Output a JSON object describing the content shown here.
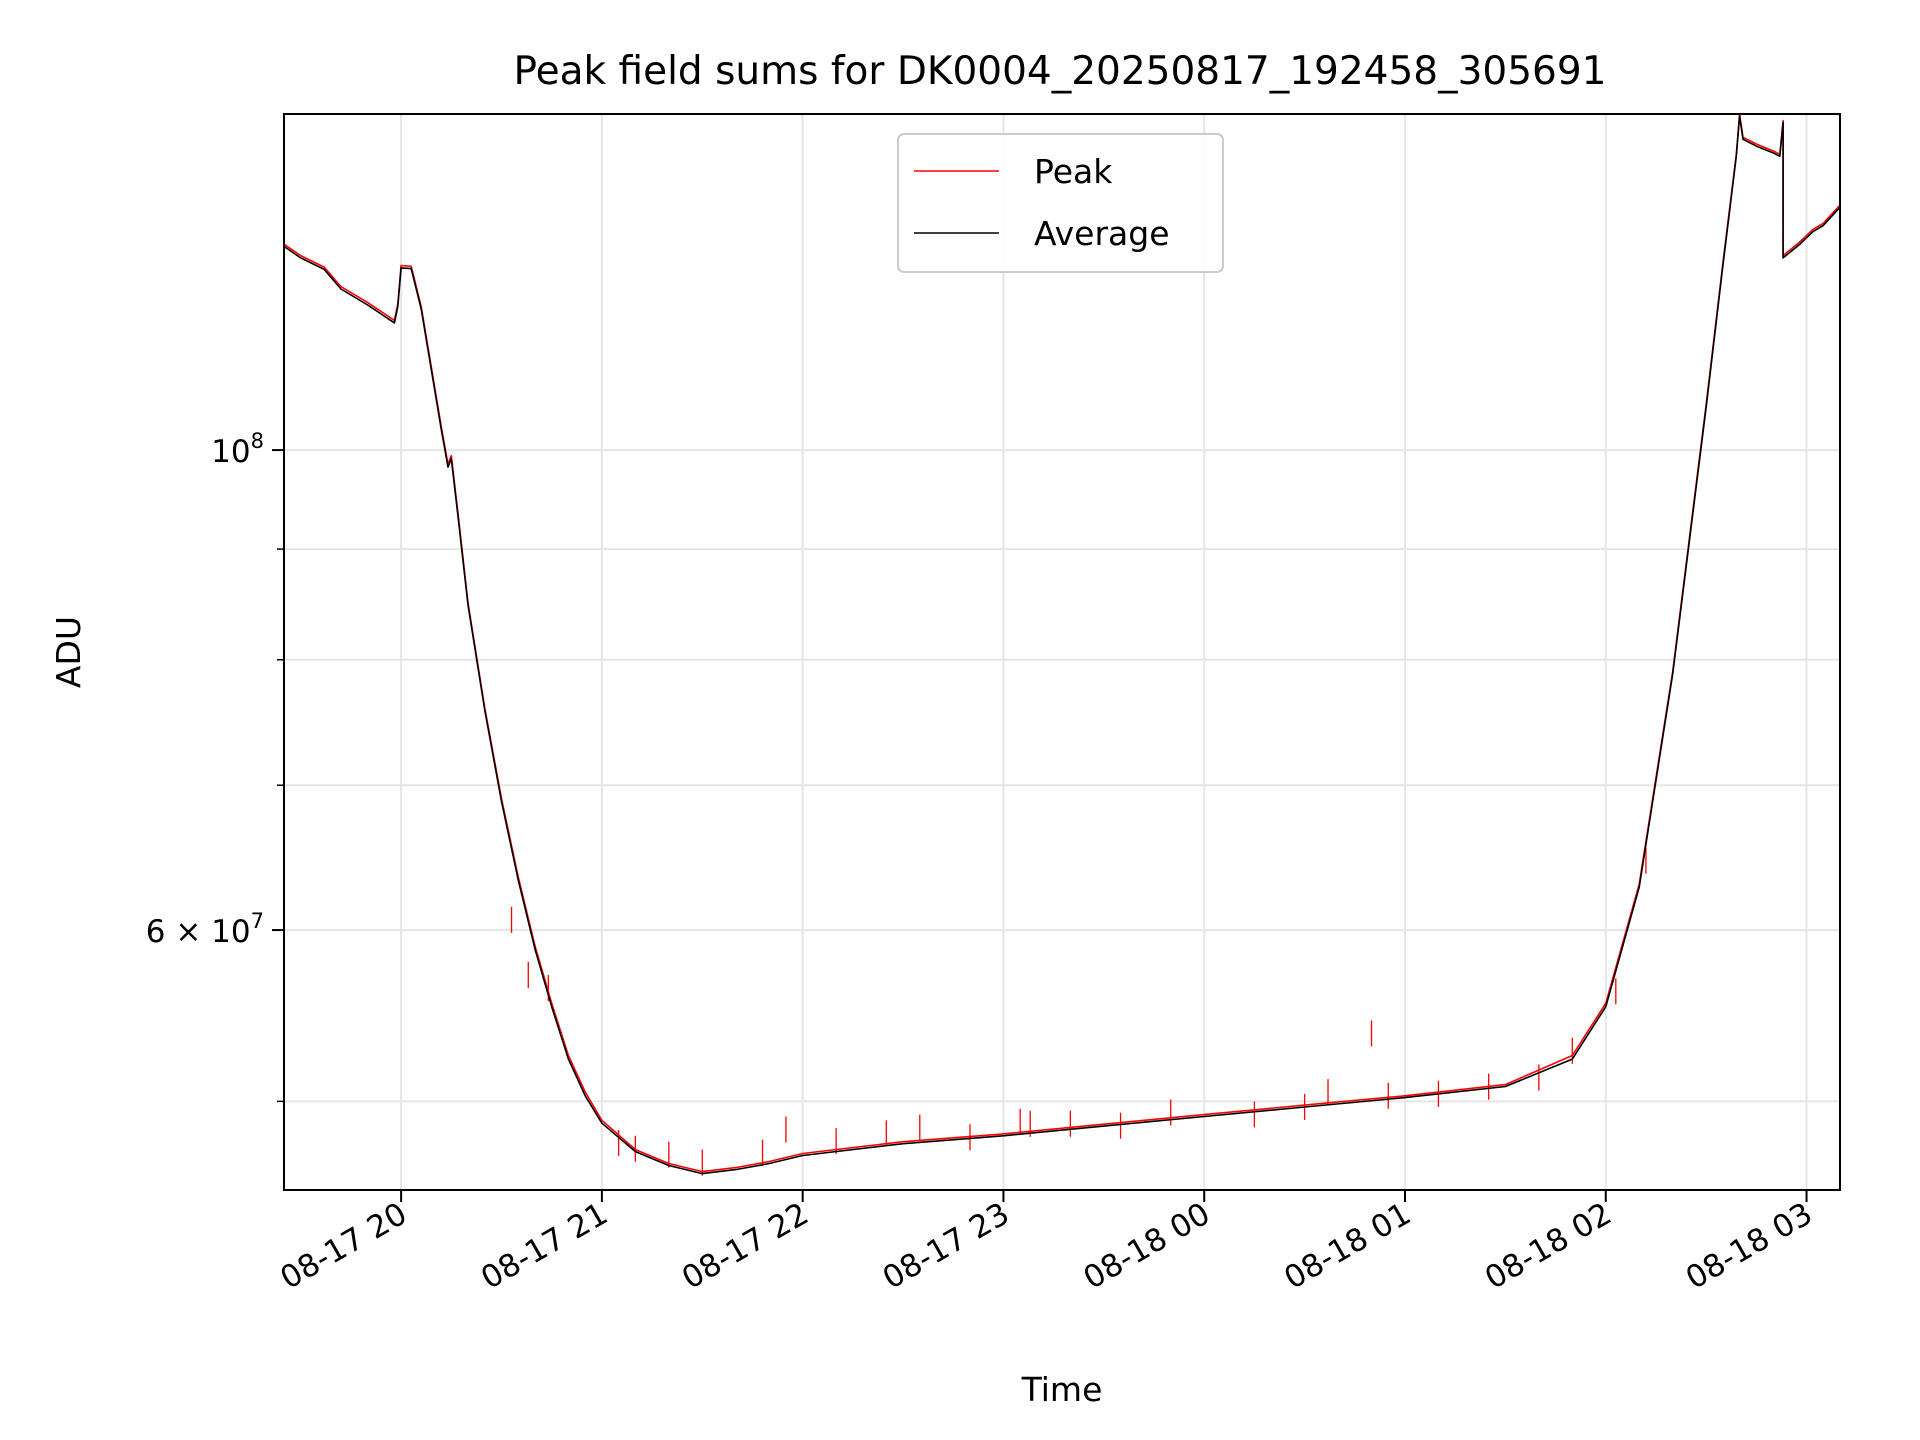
{
  "chart_data": {
    "type": "line",
    "title": "Peak field sums for DK0004_20250817_192458_305691",
    "xlabel": "Time",
    "ylabel": "ADU",
    "yscale": "log",
    "grid": true,
    "legend_position": "top-center",
    "xlim": [
      "2025-08-17 19:25",
      "2025-08-18 03:10"
    ],
    "ylim": [
      45500000,
      143000000
    ],
    "x_ticks": [
      {
        "label": "08-17 20",
        "value": "2025-08-17 20:00"
      },
      {
        "label": "08-17 21",
        "value": "2025-08-17 21:00"
      },
      {
        "label": "08-17 22",
        "value": "2025-08-17 22:00"
      },
      {
        "label": "08-17 23",
        "value": "2025-08-17 23:00"
      },
      {
        "label": "08-18 00",
        "value": "2025-08-18 00:00"
      },
      {
        "label": "08-18 01",
        "value": "2025-08-18 01:00"
      },
      {
        "label": "08-18 02",
        "value": "2025-08-18 02:00"
      },
      {
        "label": "08-18 03",
        "value": "2025-08-18 03:00"
      }
    ],
    "y_major_ticks": [
      {
        "value": 100000000,
        "base": "10",
        "exp": "8",
        "mult": ""
      },
      {
        "value": 60000000,
        "base": "10",
        "exp": "7",
        "mult": "6 × "
      }
    ],
    "y_minor_ticks": [
      50000000,
      70000000,
      80000000,
      90000000
    ],
    "series": [
      {
        "name": "Peak",
        "color": "#ff0000",
        "points": [
          [
            "2025-08-17 19:25",
            124500000
          ],
          [
            "2025-08-17 19:30",
            123000000
          ],
          [
            "2025-08-17 19:37",
            121500000
          ],
          [
            "2025-08-17 19:42",
            119000000
          ],
          [
            "2025-08-17 19:50",
            117000000
          ],
          [
            "2025-08-17 19:58",
            114800000
          ],
          [
            "2025-08-17 19:59",
            116800000
          ],
          [
            "2025-08-17 20:00",
            121700000
          ],
          [
            "2025-08-17 20:03",
            121600000
          ],
          [
            "2025-08-17 20:06",
            116500000
          ],
          [
            "2025-08-17 20:12",
            102500000
          ],
          [
            "2025-08-17 20:14",
            98500000
          ],
          [
            "2025-08-17 20:15",
            99400000
          ],
          [
            "2025-08-17 20:17",
            93500000
          ],
          [
            "2025-08-17 20:20",
            85000000
          ],
          [
            "2025-08-17 20:25",
            76000000
          ],
          [
            "2025-08-17 20:30",
            69000000
          ],
          [
            "2025-08-17 20:35",
            63500000
          ],
          [
            "2025-08-17 20:40",
            59000000
          ],
          [
            "2025-08-17 20:45",
            55500000
          ],
          [
            "2025-08-17 20:50",
            52500000
          ],
          [
            "2025-08-17 20:55",
            50500000
          ],
          [
            "2025-08-17 21:00",
            49000000
          ],
          [
            "2025-08-17 21:10",
            47500000
          ],
          [
            "2025-08-17 21:20",
            46800000
          ],
          [
            "2025-08-17 21:30",
            46400000
          ],
          [
            "2025-08-17 21:40",
            46600000
          ],
          [
            "2025-08-17 21:50",
            46900000
          ],
          [
            "2025-08-17 22:00",
            47300000
          ],
          [
            "2025-08-17 22:30",
            47900000
          ],
          [
            "2025-08-17 23:00",
            48300000
          ],
          [
            "2025-08-17 23:30",
            48800000
          ],
          [
            "2025-08-18 00:00",
            49300000
          ],
          [
            "2025-08-18 00:30",
            49800000
          ],
          [
            "2025-08-18 01:00",
            50300000
          ],
          [
            "2025-08-18 01:30",
            50900000
          ],
          [
            "2025-08-18 01:50",
            52500000
          ],
          [
            "2025-08-18 02:00",
            55500000
          ],
          [
            "2025-08-18 02:10",
            63000000
          ],
          [
            "2025-08-18 02:20",
            79000000
          ],
          [
            "2025-08-18 02:30",
            105000000
          ],
          [
            "2025-08-18 02:35",
            122000000
          ],
          [
            "2025-08-18 02:39",
            137000000
          ],
          [
            "2025-08-18 02:40",
            143000000
          ],
          [
            "2025-08-18 02:41",
            139500000
          ],
          [
            "2025-08-18 02:45",
            138500000
          ],
          [
            "2025-08-18 02:50",
            137500000
          ],
          [
            "2025-08-18 02:52",
            137000000
          ],
          [
            "2025-08-18 02:53",
            142000000
          ],
          [
            "2025-08-18 02:53",
            123000000
          ],
          [
            "2025-08-18 02:58",
            124800000
          ],
          [
            "2025-08-18 03:02",
            126500000
          ],
          [
            "2025-08-18 03:05",
            127300000
          ],
          [
            "2025-08-18 03:10",
            129800000
          ]
        ],
        "spikes": [
          [
            "2025-08-17 20:33",
            61500000
          ],
          [
            "2025-08-17 20:38",
            58000000
          ],
          [
            "2025-08-17 20:44",
            57200000
          ],
          [
            "2025-08-17 21:05",
            48500000
          ],
          [
            "2025-08-17 21:10",
            48200000
          ],
          [
            "2025-08-17 21:20",
            47900000
          ],
          [
            "2025-08-17 21:30",
            47500000
          ],
          [
            "2025-08-17 21:48",
            48000000
          ],
          [
            "2025-08-17 21:55",
            49200000
          ],
          [
            "2025-08-17 22:10",
            48600000
          ],
          [
            "2025-08-17 22:25",
            49000000
          ],
          [
            "2025-08-17 22:35",
            49300000
          ],
          [
            "2025-08-17 22:50",
            48800000
          ],
          [
            "2025-08-17 23:05",
            49600000
          ],
          [
            "2025-08-17 23:08",
            49500000
          ],
          [
            "2025-08-17 23:20",
            49500000
          ],
          [
            "2025-08-17 23:35",
            49400000
          ],
          [
            "2025-08-17 23:50",
            50100000
          ],
          [
            "2025-08-18 00:15",
            50000000
          ],
          [
            "2025-08-18 00:30",
            50400000
          ],
          [
            "2025-08-18 00:37",
            51200000
          ],
          [
            "2025-08-18 00:50",
            54500000
          ],
          [
            "2025-08-18 00:55",
            51000000
          ],
          [
            "2025-08-18 01:10",
            51100000
          ],
          [
            "2025-08-18 01:25",
            51500000
          ],
          [
            "2025-08-18 01:40",
            52000000
          ],
          [
            "2025-08-18 01:50",
            53500000
          ],
          [
            "2025-08-18 02:03",
            57000000
          ],
          [
            "2025-08-18 02:12",
            65500000
          ]
        ]
      },
      {
        "name": "Average",
        "color": "#000000",
        "points": [
          [
            "2025-08-17 19:25",
            124200000
          ],
          [
            "2025-08-17 19:30",
            122700000
          ],
          [
            "2025-08-17 19:37",
            121200000
          ],
          [
            "2025-08-17 19:42",
            118700000
          ],
          [
            "2025-08-17 19:50",
            116700000
          ],
          [
            "2025-08-17 19:58",
            114500000
          ],
          [
            "2025-08-17 19:59",
            116500000
          ],
          [
            "2025-08-17 20:00",
            121400000
          ],
          [
            "2025-08-17 20:03",
            121300000
          ],
          [
            "2025-08-17 20:06",
            116200000
          ],
          [
            "2025-08-17 20:12",
            102200000
          ],
          [
            "2025-08-17 20:14",
            98200000
          ],
          [
            "2025-08-17 20:15",
            99100000
          ],
          [
            "2025-08-17 20:17",
            93200000
          ],
          [
            "2025-08-17 20:20",
            84800000
          ],
          [
            "2025-08-17 20:25",
            75800000
          ],
          [
            "2025-08-17 20:30",
            68800000
          ],
          [
            "2025-08-17 20:35",
            63300000
          ],
          [
            "2025-08-17 20:40",
            58800000
          ],
          [
            "2025-08-17 20:45",
            55300000
          ],
          [
            "2025-08-17 20:50",
            52300000
          ],
          [
            "2025-08-17 20:55",
            50300000
          ],
          [
            "2025-08-17 21:00",
            48850000
          ],
          [
            "2025-08-17 21:10",
            47400000
          ],
          [
            "2025-08-17 21:20",
            46700000
          ],
          [
            "2025-08-17 21:30",
            46300000
          ],
          [
            "2025-08-17 21:40",
            46500000
          ],
          [
            "2025-08-17 21:50",
            46800000
          ],
          [
            "2025-08-17 22:00",
            47200000
          ],
          [
            "2025-08-17 22:30",
            47800000
          ],
          [
            "2025-08-17 23:00",
            48200000
          ],
          [
            "2025-08-17 23:30",
            48700000
          ],
          [
            "2025-08-18 00:00",
            49200000
          ],
          [
            "2025-08-18 00:30",
            49700000
          ],
          [
            "2025-08-18 01:00",
            50200000
          ],
          [
            "2025-08-18 01:30",
            50800000
          ],
          [
            "2025-08-18 01:50",
            52300000
          ],
          [
            "2025-08-18 02:00",
            55300000
          ],
          [
            "2025-08-18 02:10",
            62800000
          ],
          [
            "2025-08-18 02:20",
            78800000
          ],
          [
            "2025-08-18 02:30",
            104700000
          ],
          [
            "2025-08-18 02:35",
            121700000
          ],
          [
            "2025-08-18 02:39",
            136700000
          ],
          [
            "2025-08-18 02:40",
            142700000
          ],
          [
            "2025-08-18 02:41",
            139200000
          ],
          [
            "2025-08-18 02:45",
            138200000
          ],
          [
            "2025-08-18 02:50",
            137200000
          ],
          [
            "2025-08-18 02:52",
            136700000
          ],
          [
            "2025-08-18 02:53",
            141700000
          ],
          [
            "2025-08-18 02:53",
            122700000
          ],
          [
            "2025-08-18 02:58",
            124500000
          ],
          [
            "2025-08-18 03:02",
            126200000
          ],
          [
            "2025-08-18 03:05",
            127000000
          ],
          [
            "2025-08-18 03:10",
            129500000
          ]
        ]
      }
    ]
  }
}
